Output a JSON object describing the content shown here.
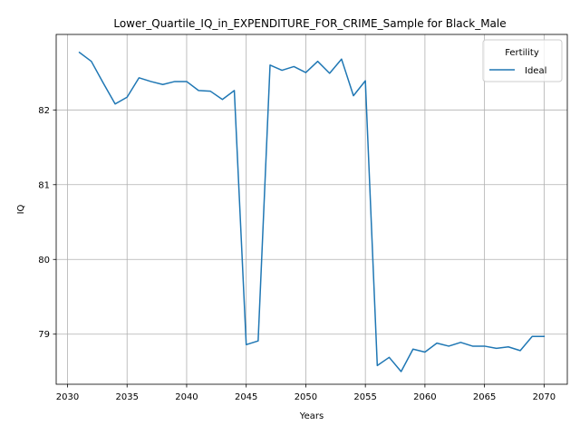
{
  "chart_data": {
    "type": "line",
    "title": "Lower_Quartile_IQ_in_EXPENDITURE_FOR_CRIME_Sample for Black_Male",
    "xlabel": "Years",
    "ylabel": "IQ",
    "xlim": [
      2029.05,
      2071.95
    ],
    "ylim": [
      78.33,
      83.01
    ],
    "xticks": [
      "2030",
      "2035",
      "2040",
      "2045",
      "2050",
      "2055",
      "2060",
      "2065",
      "2070"
    ],
    "yticks": [
      "79",
      "80",
      "81",
      "82"
    ],
    "grid": true,
    "legend": {
      "title": "Fertility",
      "position": "upper right"
    },
    "series": [
      {
        "name": "Ideal",
        "color": "#1f77b4",
        "x": [
          2031,
          2032,
          2033,
          2034,
          2035,
          2036,
          2037,
          2038,
          2039,
          2040,
          2041,
          2042,
          2043,
          2044,
          2045,
          2046,
          2047,
          2048,
          2049,
          2050,
          2051,
          2052,
          2053,
          2054,
          2055,
          2056,
          2057,
          2058,
          2059,
          2060,
          2061,
          2062,
          2063,
          2064,
          2065,
          2066,
          2067,
          2068,
          2069,
          2070
        ],
        "y": [
          82.77,
          82.65,
          82.36,
          82.08,
          82.17,
          82.43,
          82.38,
          82.34,
          82.38,
          82.38,
          82.26,
          82.25,
          82.14,
          82.26,
          78.86,
          78.91,
          82.6,
          82.53,
          82.58,
          82.5,
          82.65,
          82.49,
          82.68,
          82.19,
          82.39,
          78.58,
          78.69,
          78.5,
          78.8,
          78.76,
          78.88,
          78.84,
          78.89,
          78.84,
          78.84,
          78.81,
          78.83,
          78.78,
          78.97,
          78.97
        ]
      }
    ]
  }
}
